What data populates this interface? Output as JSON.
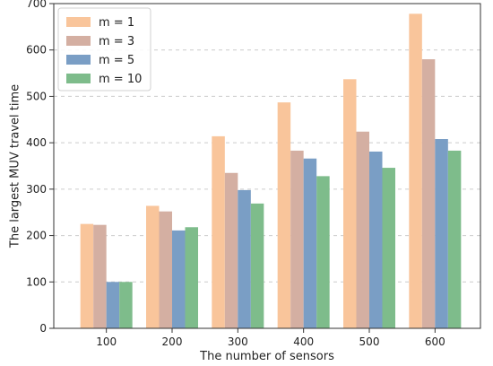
{
  "chart_data": {
    "type": "bar",
    "title": "",
    "xlabel": "The number of sensors",
    "ylabel": "The largest MUV travel time",
    "categories": [
      "100",
      "200",
      "300",
      "400",
      "500",
      "600"
    ],
    "ylim": [
      0,
      700
    ],
    "yticks": [
      0,
      100,
      200,
      300,
      400,
      500,
      600,
      700
    ],
    "grid": "horizontal dashed",
    "legend_position": "top-left",
    "series": [
      {
        "name": "m = 1",
        "color": "#f9c59b",
        "values": [
          225,
          264,
          414,
          487,
          537,
          678
        ]
      },
      {
        "name": "m = 3",
        "color": "#d4afa2",
        "values": [
          223,
          252,
          335,
          383,
          424,
          580
        ]
      },
      {
        "name": "m = 5",
        "color": "#7a9ec5",
        "values": [
          100,
          211,
          298,
          366,
          381,
          408
        ]
      },
      {
        "name": "m = 10",
        "color": "#7ebc8b",
        "values": [
          100,
          218,
          269,
          328,
          346,
          383
        ]
      }
    ]
  }
}
